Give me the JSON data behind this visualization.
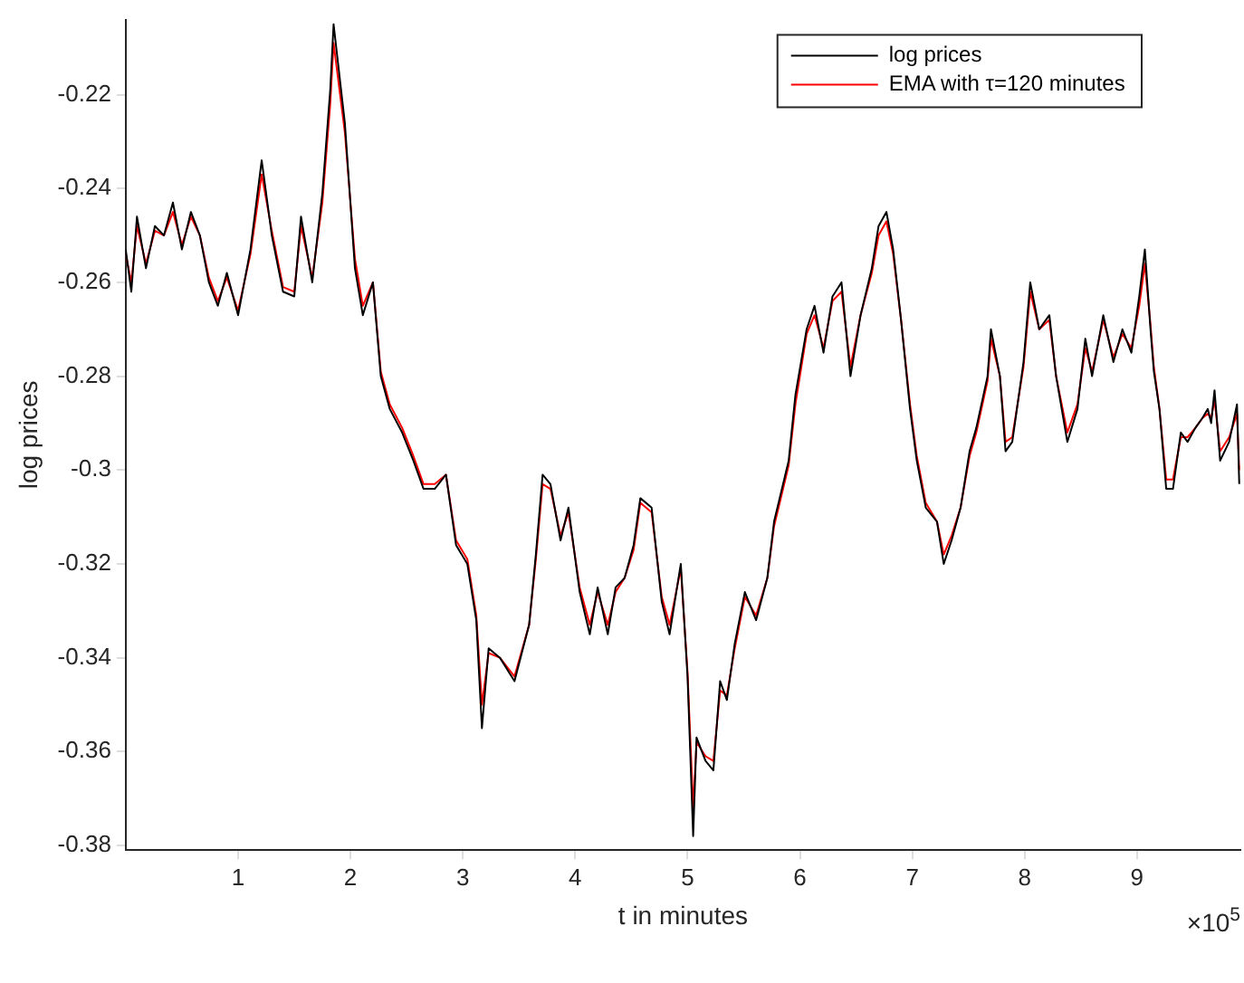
{
  "chart_data": {
    "type": "line",
    "xlabel": "t in minutes",
    "ylabel": "log prices",
    "legend": "top right",
    "annotations": [
      "×10$^{5}$"
    ],
    "xlim": [
      0,
      9.92
    ],
    "ylim": [
      -0.381,
      -0.204
    ],
    "xticks": [
      1,
      2,
      3,
      4,
      5,
      6,
      7,
      8,
      9
    ],
    "yticks": [
      -0.38,
      -0.36,
      -0.34,
      -0.32,
      -0.3,
      -0.28,
      -0.26,
      -0.24,
      -0.22
    ],
    "x": [
      0,
      0.05,
      0.1,
      0.18,
      0.26,
      0.34,
      0.42,
      0.5,
      0.58,
      0.66,
      0.74,
      0.82,
      0.9,
      1,
      1.11,
      1.21,
      1.3,
      1.4,
      1.5,
      1.56,
      1.66,
      1.75,
      1.82,
      1.85,
      1.95,
      2.04,
      2.11,
      2.2,
      2.27,
      2.35,
      2.46,
      2.56,
      2.65,
      2.75,
      2.85,
      2.94,
      3.04,
      3.12,
      3.17,
      3.23,
      3.33,
      3.46,
      3.59,
      3.65,
      3.71,
      3.78,
      3.87,
      3.94,
      4.04,
      4.13,
      4.2,
      4.29,
      4.36,
      4.44,
      4.52,
      4.58,
      4.68,
      4.77,
      4.84,
      4.94,
      5,
      5.05,
      5.08,
      5.16,
      5.23,
      5.29,
      5.35,
      5.42,
      5.51,
      5.61,
      5.71,
      5.77,
      5.87,
      5.9,
      5.96,
      6.06,
      6.13,
      6.21,
      6.29,
      6.37,
      6.45,
      6.54,
      6.64,
      6.7,
      6.77,
      6.83,
      6.9,
      6.98,
      7.04,
      7.12,
      7.22,
      7.28,
      7.35,
      7.43,
      7.51,
      7.57,
      7.67,
      7.7,
      7.78,
      7.83,
      7.89,
      7.99,
      8.05,
      8.13,
      8.22,
      8.28,
      8.38,
      8.47,
      8.54,
      8.6,
      8.7,
      8.79,
      8.87,
      8.95,
      9.02,
      9.07,
      9.12,
      9.15,
      9.2,
      9.26,
      9.32,
      9.39,
      9.45,
      9.52,
      9.58,
      9.63,
      9.66,
      9.69,
      9.74,
      9.82,
      9.89,
      9.91
    ],
    "series": [
      {
        "name": "log prices",
        "color": "#000000",
        "values": [
          -0.253,
          -0.262,
          -0.246,
          -0.257,
          -0.248,
          -0.25,
          -0.243,
          -0.253,
          -0.245,
          -0.25,
          -0.26,
          -0.265,
          -0.258,
          -0.267,
          -0.253,
          -0.234,
          -0.25,
          -0.262,
          -0.263,
          -0.246,
          -0.26,
          -0.241,
          -0.219,
          -0.205,
          -0.226,
          -0.257,
          -0.267,
          -0.26,
          -0.28,
          -0.287,
          -0.292,
          -0.298,
          -0.304,
          -0.304,
          -0.301,
          -0.316,
          -0.32,
          -0.332,
          -0.355,
          -0.338,
          -0.34,
          -0.345,
          -0.333,
          -0.318,
          -0.301,
          -0.303,
          -0.315,
          -0.308,
          -0.326,
          -0.335,
          -0.325,
          -0.335,
          -0.325,
          -0.323,
          -0.316,
          -0.306,
          -0.308,
          -0.328,
          -0.335,
          -0.32,
          -0.344,
          -0.378,
          -0.357,
          -0.362,
          -0.364,
          -0.345,
          -0.349,
          -0.337,
          -0.326,
          -0.332,
          -0.323,
          -0.311,
          -0.301,
          -0.298,
          -0.284,
          -0.27,
          -0.265,
          -0.275,
          -0.263,
          -0.26,
          -0.28,
          -0.267,
          -0.257,
          -0.248,
          -0.245,
          -0.253,
          -0.268,
          -0.287,
          -0.298,
          -0.308,
          -0.311,
          -0.32,
          -0.315,
          -0.308,
          -0.296,
          -0.291,
          -0.28,
          -0.27,
          -0.28,
          -0.296,
          -0.294,
          -0.277,
          -0.26,
          -0.27,
          -0.267,
          -0.28,
          -0.294,
          -0.287,
          -0.272,
          -0.28,
          -0.267,
          -0.277,
          -0.27,
          -0.275,
          -0.263,
          -0.253,
          -0.27,
          -0.279,
          -0.287,
          -0.304,
          -0.304,
          -0.292,
          -0.294,
          -0.291,
          -0.289,
          -0.287,
          -0.29,
          -0.283,
          -0.298,
          -0.294,
          -0.286,
          -0.303
        ]
      },
      {
        "name": "EMA with τ=120 minutes",
        "color": "#ff0000",
        "values": [
          -0.254,
          -0.26,
          -0.248,
          -0.256,
          -0.249,
          -0.25,
          -0.245,
          -0.252,
          -0.246,
          -0.25,
          -0.259,
          -0.264,
          -0.259,
          -0.266,
          -0.254,
          -0.237,
          -0.249,
          -0.261,
          -0.262,
          -0.248,
          -0.259,
          -0.243,
          -0.222,
          -0.209,
          -0.228,
          -0.255,
          -0.265,
          -0.26,
          -0.279,
          -0.286,
          -0.291,
          -0.297,
          -0.303,
          -0.303,
          -0.301,
          -0.315,
          -0.319,
          -0.331,
          -0.35,
          -0.339,
          -0.34,
          -0.344,
          -0.333,
          -0.319,
          -0.303,
          -0.304,
          -0.314,
          -0.309,
          -0.325,
          -0.333,
          -0.326,
          -0.333,
          -0.326,
          -0.323,
          -0.317,
          -0.307,
          -0.309,
          -0.327,
          -0.333,
          -0.321,
          -0.343,
          -0.372,
          -0.358,
          -0.361,
          -0.362,
          -0.347,
          -0.348,
          -0.338,
          -0.327,
          -0.331,
          -0.323,
          -0.312,
          -0.302,
          -0.299,
          -0.286,
          -0.271,
          -0.267,
          -0.274,
          -0.264,
          -0.262,
          -0.278,
          -0.267,
          -0.258,
          -0.25,
          -0.247,
          -0.254,
          -0.268,
          -0.286,
          -0.297,
          -0.307,
          -0.311,
          -0.318,
          -0.314,
          -0.308,
          -0.297,
          -0.292,
          -0.281,
          -0.272,
          -0.28,
          -0.294,
          -0.293,
          -0.278,
          -0.262,
          -0.27,
          -0.268,
          -0.28,
          -0.292,
          -0.286,
          -0.274,
          -0.279,
          -0.268,
          -0.276,
          -0.271,
          -0.274,
          -0.265,
          -0.256,
          -0.269,
          -0.278,
          -0.287,
          -0.302,
          -0.302,
          -0.293,
          -0.293,
          -0.291,
          -0.289,
          -0.288,
          -0.289,
          -0.285,
          -0.296,
          -0.293,
          -0.288,
          -0.3
        ]
      }
    ]
  }
}
